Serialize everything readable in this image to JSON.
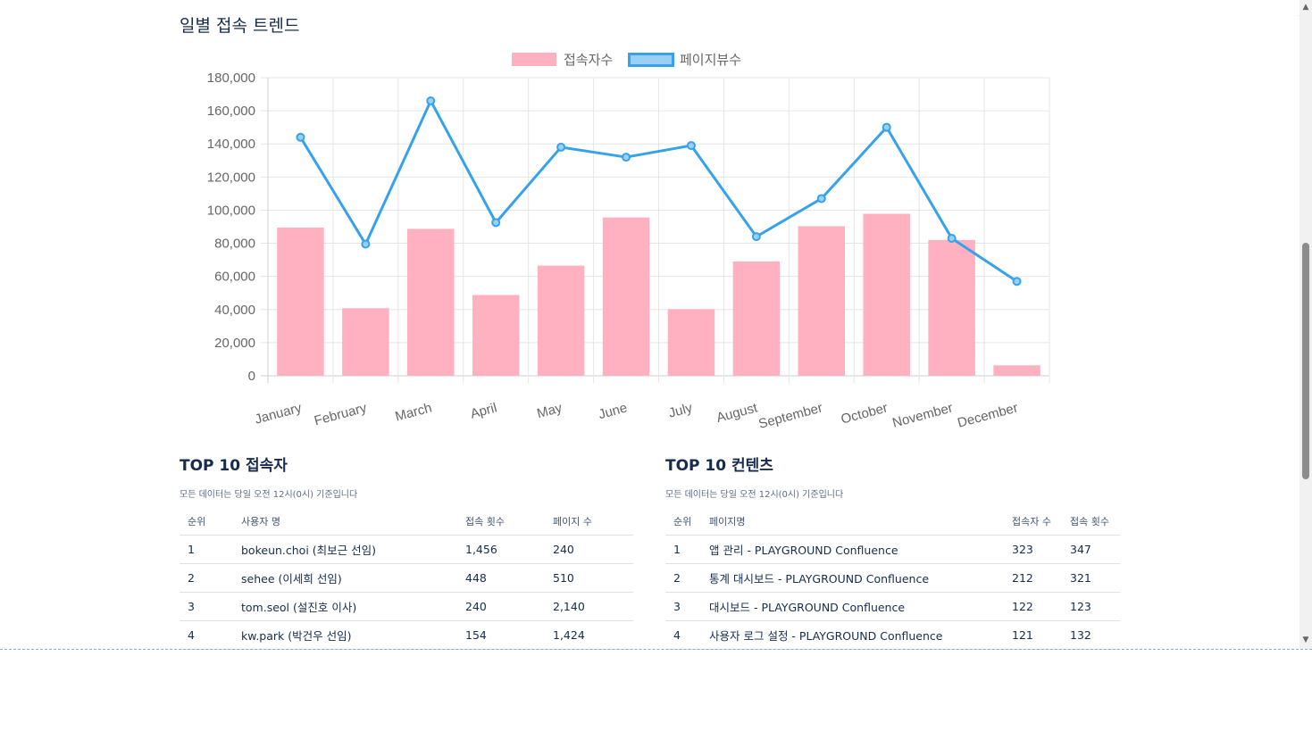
{
  "page": {
    "title": "일별 접속 트렌드"
  },
  "chart_data": {
    "type": "bar",
    "categories": [
      "January",
      "February",
      "March",
      "April",
      "May",
      "June",
      "July",
      "August",
      "September",
      "October",
      "November",
      "December"
    ],
    "series": [
      {
        "name": "접속자수",
        "type": "bar",
        "color": "#ffb1c1",
        "values": [
          89500,
          40800,
          88700,
          48800,
          66500,
          95600,
          40200,
          69000,
          90300,
          97800,
          82000,
          6300
        ]
      },
      {
        "name": "페이지뷰수",
        "type": "line",
        "color": "#36a2eb",
        "values": [
          144000,
          79500,
          166000,
          92500,
          138000,
          132000,
          139000,
          84000,
          107000,
          150000,
          83000,
          57000
        ]
      }
    ],
    "ylim": [
      0,
      180000
    ],
    "yticks": [
      "0",
      "20,000",
      "40,000",
      "60,000",
      "80,000",
      "100,000",
      "120,000",
      "140,000",
      "160,000",
      "180,000"
    ],
    "grid": true,
    "legend": "top-center"
  },
  "top_users": {
    "title_bold": "TOP 10",
    "title_rest": " 접속자",
    "note": "모든 데이터는 당일 오전 12시(0시) 기준입니다",
    "headers": [
      "순위",
      "사용자 명",
      "접속 횟수",
      "페이지 수"
    ],
    "rows": [
      [
        "1",
        "bokeun.choi (최보근 선임)",
        "1,456",
        "240"
      ],
      [
        "2",
        "sehee (이세희 선임)",
        "448",
        "510"
      ],
      [
        "3",
        "tom.seol (설진호 이사)",
        "240",
        "2,140"
      ],
      [
        "4",
        "kw.park (박건우 선임)",
        "154",
        "1,424"
      ]
    ]
  },
  "top_contents": {
    "title_bold": "TOP 10",
    "title_rest": " 컨텐츠",
    "note": "모든 데이터는 당일 오전 12시(0시) 기준입니다",
    "headers": [
      "순위",
      "페이지명",
      "접속자 수",
      "접속 횟수"
    ],
    "rows": [
      [
        "1",
        "앱 관리 - PLAYGROUND Confluence",
        "323",
        "347"
      ],
      [
        "2",
        "통계 대시보드 - PLAYGROUND Confluence",
        "212",
        "321"
      ],
      [
        "3",
        "대시보드 - PLAYGROUND Confluence",
        "122",
        "123"
      ],
      [
        "4",
        "사용자 로그 설정 - PLAYGROUND Confluence",
        "121",
        "132"
      ]
    ]
  }
}
